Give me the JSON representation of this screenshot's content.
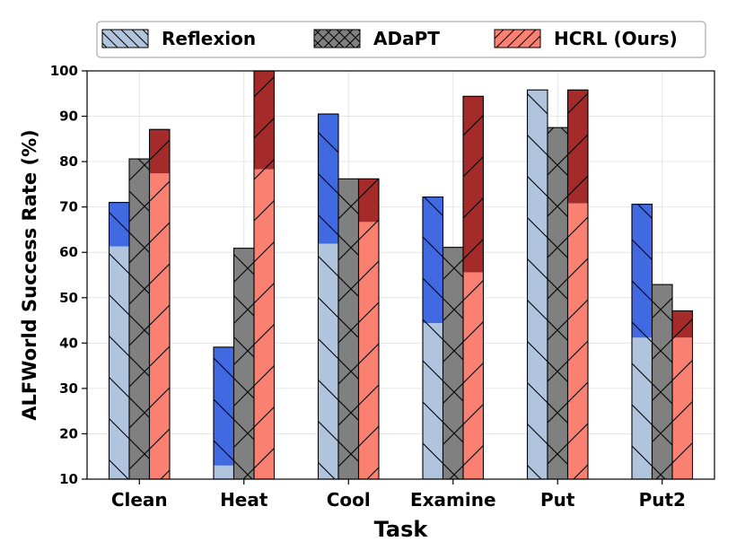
{
  "chart_data": {
    "type": "bar",
    "stacked_segments": true,
    "title": "",
    "xlabel": "Task",
    "ylabel": "ALFWorld Success Rate (%)",
    "ylim": [
      10,
      100
    ],
    "yticks": [
      10,
      20,
      30,
      40,
      50,
      60,
      70,
      80,
      90,
      100
    ],
    "grid": true,
    "legend_position": "top",
    "categories": [
      "Clean",
      "Heat",
      "Cool",
      "Examine",
      "Put",
      "Put2"
    ],
    "series": [
      {
        "name": "Reflexion",
        "base_values": [
          61.3,
          13.0,
          61.9,
          44.4,
          95.8,
          41.2
        ],
        "total_values": [
          71.0,
          39.1,
          90.5,
          72.2,
          95.8,
          70.6
        ],
        "base_color": "#b0c4de",
        "top_color": "#4169e1",
        "hatch": "backslash"
      },
      {
        "name": "ADaPT",
        "base_values": [
          80.6,
          60.9,
          76.2,
          61.1,
          87.5,
          52.9
        ],
        "total_values": [
          80.6,
          60.9,
          76.2,
          61.1,
          87.5,
          52.9
        ],
        "base_color": "#808080",
        "top_color": "#808080",
        "hatch": "cross"
      },
      {
        "name": "HCRL (Ours)",
        "base_values": [
          77.4,
          78.3,
          66.7,
          55.6,
          70.8,
          41.2
        ],
        "total_values": [
          87.1,
          100.0,
          76.2,
          94.4,
          95.8,
          47.1
        ],
        "base_color": "#fa8072",
        "top_color": "#a52a2a",
        "hatch": "slash"
      }
    ]
  }
}
